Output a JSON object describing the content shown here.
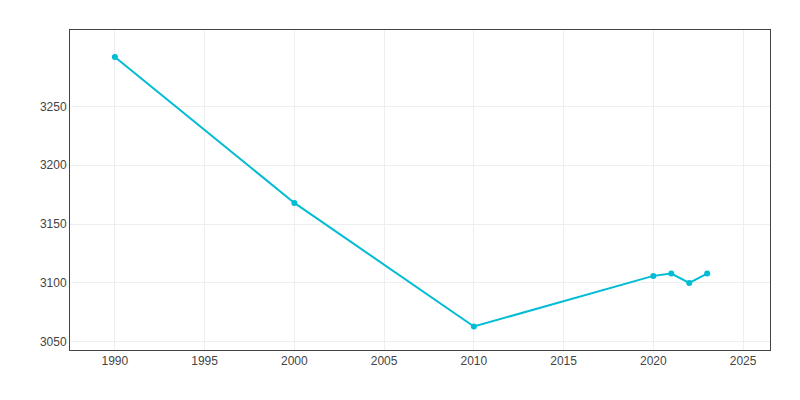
{
  "chart_data": {
    "type": "line",
    "x": [
      1990,
      2000,
      2010,
      2020,
      2021,
      2022,
      2023
    ],
    "values": [
      3292,
      3168,
      3063,
      3106,
      3108,
      3100,
      3108
    ],
    "color": "#00BCD4",
    "marker": "circle",
    "xlim": [
      1987.5,
      2026.5
    ],
    "ylim": [
      3043,
      3315
    ],
    "xticks": [
      1990,
      1995,
      2000,
      2005,
      2010,
      2015,
      2020,
      2025
    ],
    "yticks": [
      3050,
      3100,
      3150,
      3200,
      3250
    ],
    "grid": true
  }
}
